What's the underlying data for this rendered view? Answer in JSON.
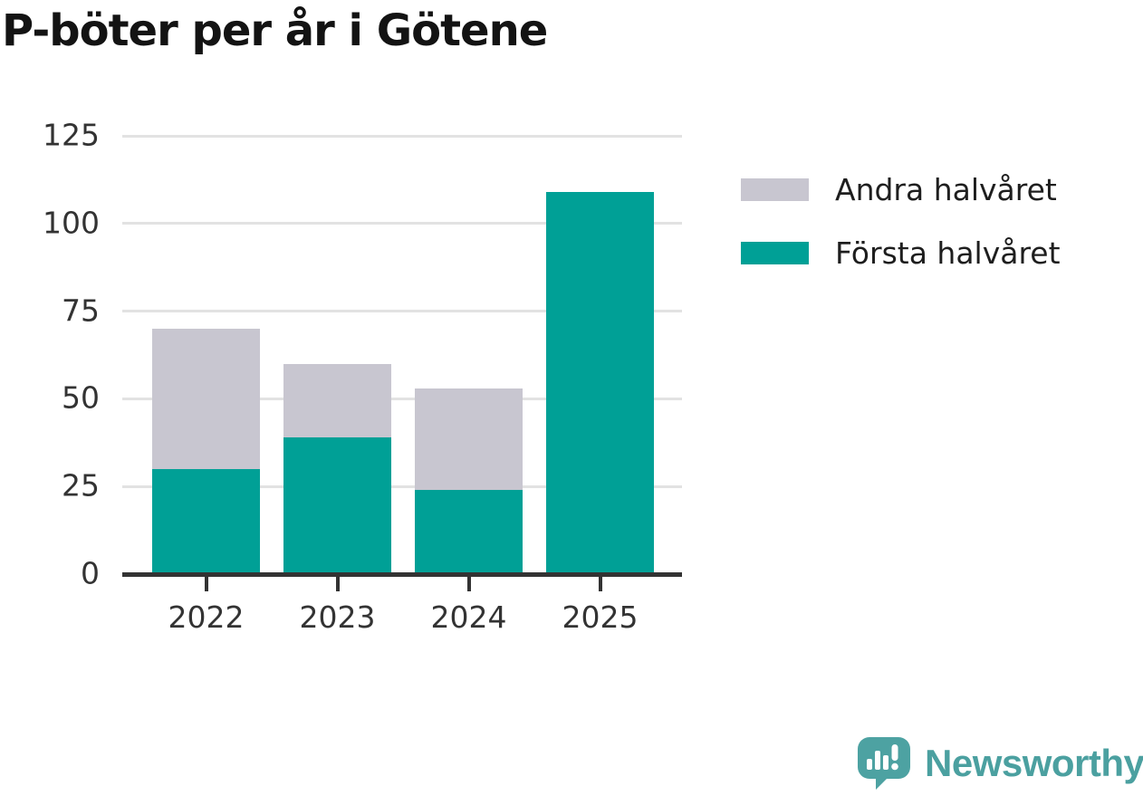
{
  "title": "P-böter per år i Götene",
  "chart_data": {
    "type": "bar",
    "stacked": true,
    "title": "P-böter per år i Götene",
    "categories": [
      "2022",
      "2023",
      "2024",
      "2025"
    ],
    "series": [
      {
        "name": "Första halvåret",
        "color": "#00A096",
        "values": [
          30,
          39,
          24,
          109
        ]
      },
      {
        "name": "Andra halvåret",
        "color": "#C8C6D0",
        "values": [
          40,
          21,
          29,
          0
        ]
      }
    ],
    "totals": [
      70,
      60,
      53,
      109
    ],
    "xlabel": "",
    "ylabel": "",
    "ylim": [
      0,
      125
    ],
    "yticks": [
      0,
      25,
      50,
      75,
      100,
      125
    ],
    "grid": true,
    "gridline_color": "#e2e2e2",
    "axis_color": "#333333",
    "legend_position": "top-right"
  },
  "legend": {
    "items": [
      {
        "label": "Andra halvåret",
        "color": "#C8C6D0"
      },
      {
        "label": "Första halvåret",
        "color": "#00A096"
      }
    ]
  },
  "branding": {
    "logo_text": "Newsworthy",
    "logo_color": "#4BA0A0"
  }
}
